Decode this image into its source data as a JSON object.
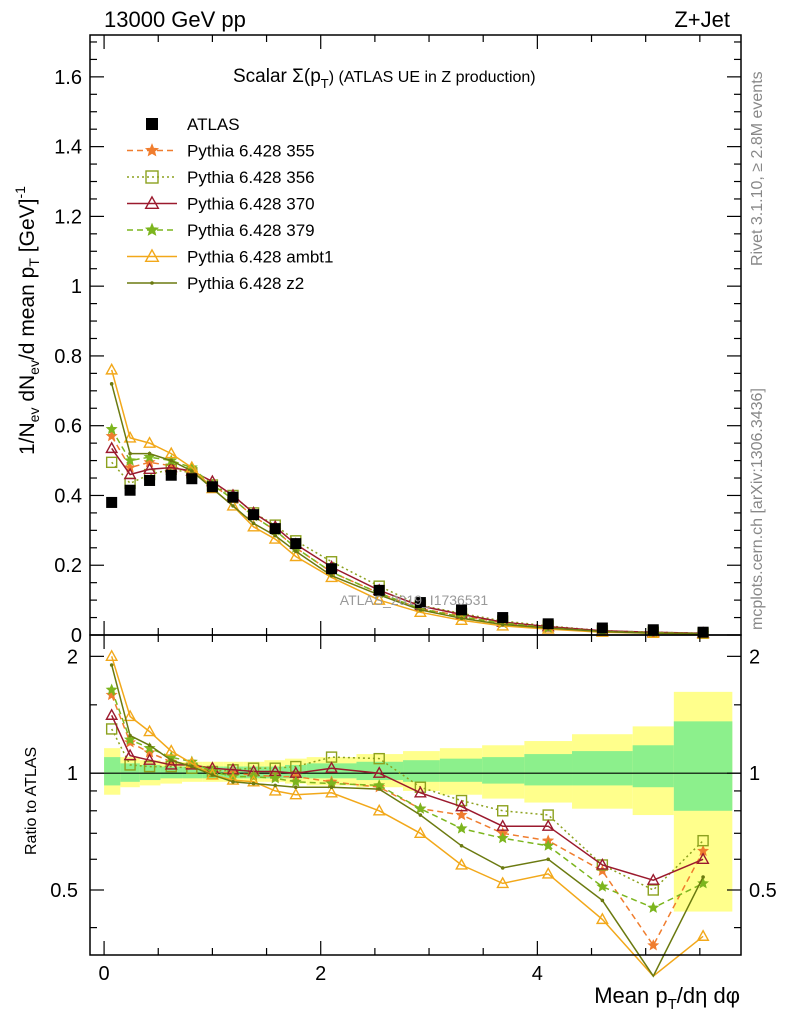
{
  "header": {
    "energy_label": "13000 GeV pp",
    "process_label": "Z+Jet",
    "side_label_top": "Rivet 3.1.10, ≥ 2.8M events",
    "side_label_bottom": "mcplots.cern.ch [arXiv:1306.3436]",
    "watermark": "ATLAS_2019_I1736531"
  },
  "chart_data": [
    {
      "type": "line",
      "title": "Scalar Σ(pT) (ATLAS UE in Z production)",
      "title_main": "Scalar Σ(p",
      "title_sub": "T",
      "title_tail": ") (ATLAS UE in Z production)",
      "ylabel": "1/Nev dNev/d mean pT [GeV]^-1",
      "ylim": [
        0,
        1.72
      ],
      "yticks": [
        "0",
        "0.2",
        "0.4",
        "0.6",
        "0.8",
        "1",
        "1.2",
        "1.4",
        "1.6"
      ],
      "x": [
        0.07,
        0.24,
        0.42,
        0.62,
        0.81,
        1.0,
        1.19,
        1.38,
        1.58,
        1.77,
        2.1,
        2.54,
        2.92,
        3.3,
        3.68,
        4.1,
        4.6,
        5.07,
        5.53
      ],
      "data": {
        "name": "ATLAS",
        "values": [
          0.38,
          0.415,
          0.443,
          0.458,
          0.448,
          0.425,
          0.395,
          0.345,
          0.305,
          0.262,
          0.19,
          0.128,
          0.093,
          0.072,
          0.05,
          0.032,
          0.02,
          0.015,
          0.008
        ]
      },
      "series": [
        {
          "name": "Pythia 6.428 355",
          "color": "#f07d2e",
          "dash": "6,4",
          "marker": "star",
          "values": [
            0.57,
            0.48,
            0.495,
            0.485,
            0.465,
            0.43,
            0.39,
            0.34,
            0.3,
            0.25,
            0.18,
            0.12,
            0.075,
            0.055,
            0.035,
            0.02,
            0.012,
            0.006,
            0.005
          ]
        },
        {
          "name": "Pythia 6.428 356",
          "color": "#8ca11e",
          "dash": "2,3",
          "marker": "square",
          "values": [
            0.495,
            0.435,
            0.46,
            0.475,
            0.465,
            0.43,
            0.4,
            0.35,
            0.315,
            0.27,
            0.21,
            0.14,
            0.085,
            0.062,
            0.04,
            0.026,
            0.012,
            0.008,
            0.005
          ]
        },
        {
          "name": "Pythia 6.428 370",
          "color": "#9b1a2e",
          "dash": "",
          "marker": "triangle",
          "values": [
            0.535,
            0.46,
            0.475,
            0.48,
            0.47,
            0.44,
            0.4,
            0.35,
            0.31,
            0.26,
            0.195,
            0.128,
            0.083,
            0.059,
            0.037,
            0.024,
            0.012,
            0.008,
            0.005
          ]
        },
        {
          "name": "Pythia 6.428 379",
          "color": "#7cb51e",
          "dash": "6,4",
          "marker": "star",
          "values": [
            0.59,
            0.5,
            0.51,
            0.5,
            0.48,
            0.43,
            0.39,
            0.34,
            0.3,
            0.25,
            0.18,
            0.12,
            0.075,
            0.052,
            0.034,
            0.021,
            0.01,
            0.007,
            0.004
          ]
        },
        {
          "name": "Pythia 6.428 ambt1",
          "color": "#f2a81a",
          "dash": "",
          "marker": "triangle",
          "values": [
            0.76,
            0.565,
            0.55,
            0.52,
            0.48,
            0.42,
            0.37,
            0.31,
            0.275,
            0.225,
            0.165,
            0.1,
            0.065,
            0.042,
            0.026,
            0.017,
            0.008,
            0.005,
            0.003
          ]
        },
        {
          "name": "Pythia 6.428 z2",
          "color": "#6b7a10",
          "dash": "",
          "marker": "dot",
          "values": [
            0.72,
            0.52,
            0.52,
            0.5,
            0.47,
            0.42,
            0.37,
            0.32,
            0.285,
            0.24,
            0.17,
            0.115,
            0.072,
            0.048,
            0.03,
            0.02,
            0.01,
            0.005,
            0.004
          ]
        }
      ]
    },
    {
      "type": "line",
      "xlabel": "Mean pT/dη dφ",
      "ylabel": "Ratio to ATLAS",
      "xlim": [
        -0.13,
        5.88
      ],
      "ylim": [
        0.34,
        2.27
      ],
      "xticks": [
        "0",
        "2",
        "4"
      ],
      "yticks": [
        "0.5",
        "1",
        "2"
      ],
      "band_edges": [
        0.0,
        0.15,
        0.33,
        0.52,
        0.72,
        0.91,
        1.1,
        1.29,
        1.48,
        1.67,
        1.87,
        2.33,
        2.76,
        3.1,
        3.49,
        3.88,
        4.32,
        4.88,
        5.26,
        5.8
      ],
      "band_inner": [
        [
          0.93,
          1.1
        ],
        [
          0.95,
          1.06
        ],
        [
          0.96,
          1.05
        ],
        [
          0.97,
          1.04
        ],
        [
          0.97,
          1.04
        ],
        [
          0.97,
          1.04
        ],
        [
          0.97,
          1.04
        ],
        [
          0.97,
          1.04
        ],
        [
          0.97,
          1.04
        ],
        [
          0.97,
          1.05
        ],
        [
          0.97,
          1.06
        ],
        [
          0.96,
          1.07
        ],
        [
          0.95,
          1.08
        ],
        [
          0.95,
          1.09
        ],
        [
          0.94,
          1.1
        ],
        [
          0.93,
          1.12
        ],
        [
          0.93,
          1.14
        ],
        [
          0.92,
          1.18
        ],
        [
          0.8,
          1.36
        ]
      ],
      "band_outer": [
        [
          0.88,
          1.16
        ],
        [
          0.92,
          1.1
        ],
        [
          0.93,
          1.08
        ],
        [
          0.94,
          1.07
        ],
        [
          0.95,
          1.07
        ],
        [
          0.95,
          1.07
        ],
        [
          0.95,
          1.07
        ],
        [
          0.95,
          1.07
        ],
        [
          0.95,
          1.08
        ],
        [
          0.94,
          1.09
        ],
        [
          0.93,
          1.1
        ],
        [
          0.92,
          1.12
        ],
        [
          0.9,
          1.14
        ],
        [
          0.88,
          1.16
        ],
        [
          0.86,
          1.18
        ],
        [
          0.84,
          1.21
        ],
        [
          0.81,
          1.26
        ],
        [
          0.78,
          1.32
        ],
        [
          0.44,
          1.62
        ]
      ],
      "series": [
        {
          "name": "Pythia 6.428 355",
          "values": [
            1.59,
            1.2,
            1.13,
            1.07,
            1.05,
            1.01,
            1.0,
            0.99,
            0.98,
            0.98,
            0.95,
            0.92,
            0.81,
            0.78,
            0.7,
            0.67,
            0.56,
            0.36,
            0.63
          ]
        },
        {
          "name": "Pythia 6.428 356",
          "values": [
            1.3,
            1.05,
            1.04,
            1.04,
            1.03,
            1.01,
            1.02,
            1.03,
            1.03,
            1.04,
            1.1,
            1.09,
            0.92,
            0.85,
            0.8,
            0.78,
            0.58,
            0.5,
            0.67
          ]
        },
        {
          "name": "Pythia 6.428 370",
          "values": [
            1.41,
            1.11,
            1.08,
            1.05,
            1.05,
            1.03,
            1.02,
            1.01,
            1.01,
            1.0,
            1.03,
            1.0,
            0.89,
            0.82,
            0.73,
            0.73,
            0.58,
            0.53,
            0.6
          ]
        },
        {
          "name": "Pythia 6.428 379",
          "values": [
            1.64,
            1.22,
            1.16,
            1.1,
            1.07,
            1.01,
            0.98,
            0.98,
            0.97,
            0.95,
            0.94,
            0.93,
            0.81,
            0.72,
            0.68,
            0.65,
            0.51,
            0.45,
            0.52
          ]
        },
        {
          "name": "Pythia 6.428 ambt1",
          "values": [
            2.0,
            1.4,
            1.28,
            1.14,
            1.06,
            0.99,
            0.96,
            0.95,
            0.9,
            0.88,
            0.89,
            0.8,
            0.7,
            0.58,
            0.52,
            0.55,
            0.42,
            0.3,
            0.38
          ]
        },
        {
          "name": "Pythia 6.428 z2",
          "values": [
            1.9,
            1.25,
            1.18,
            1.08,
            1.04,
            0.99,
            0.95,
            0.94,
            0.93,
            0.92,
            0.92,
            0.91,
            0.78,
            0.65,
            0.57,
            0.6,
            0.47,
            0.3,
            0.54
          ]
        }
      ]
    }
  ]
}
